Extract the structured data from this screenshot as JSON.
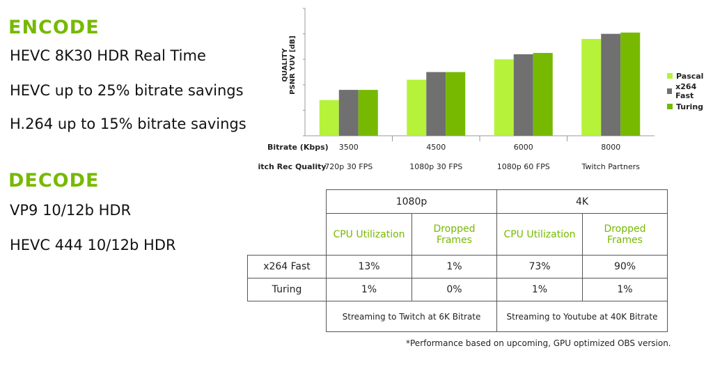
{
  "encode": {
    "title": "ENCODE",
    "lines": [
      "HEVC 8K30 HDR Real Time",
      "HEVC up to 25% bitrate savings",
      "H.264 up to 15% bitrate savings"
    ]
  },
  "decode": {
    "title": "DECODE",
    "lines": [
      "VP9 10/12b HDR",
      "HEVC 444 10/12b HDR"
    ]
  },
  "colors": {
    "accent": "#76b900",
    "pascal": "#b6f23a",
    "x264": "#707070",
    "turing": "#76b900"
  },
  "chart_data": {
    "type": "bar",
    "ylabel": "QUALITY\nPSNR YUV [dB]",
    "xlabel": "",
    "row_labels": [
      "Bitrate (Kbps)",
      "Twitch Rec Quality"
    ],
    "categories": [
      "3500",
      "4500",
      "6000",
      "8000"
    ],
    "quality_labels": [
      "720p 30 FPS",
      "1080p 30 FPS",
      "1080p 60 FPS",
      "Twitch Partners"
    ],
    "ylim": [
      0,
      5
    ],
    "series": [
      {
        "name": "Pascal",
        "color": "#b6f23a",
        "values": [
          1.4,
          2.2,
          3.0,
          3.8
        ]
      },
      {
        "name": "x264 Fast",
        "color": "#707070",
        "values": [
          1.8,
          2.5,
          3.2,
          4.0
        ]
      },
      {
        "name": "Turing",
        "color": "#76b900",
        "values": [
          1.8,
          2.5,
          3.25,
          4.05
        ]
      }
    ]
  },
  "table": {
    "groups": [
      "1080p",
      "4K"
    ],
    "subheaders": [
      "CPU Utilization",
      "Dropped\nFrames",
      "CPU Utilization",
      "Dropped\nFrames"
    ],
    "rows": [
      {
        "label": "x264 Fast",
        "values": [
          "13%",
          "1%",
          "73%",
          "90%"
        ]
      },
      {
        "label": "Turing",
        "values": [
          "1%",
          "0%",
          "1%",
          "1%"
        ]
      }
    ],
    "notes": [
      "Streaming to Twitch at 6K Bitrate",
      "Streaming to Youtube at 40K Bitrate"
    ]
  },
  "footnote": "*Performance based on upcoming, GPU optimized OBS version."
}
